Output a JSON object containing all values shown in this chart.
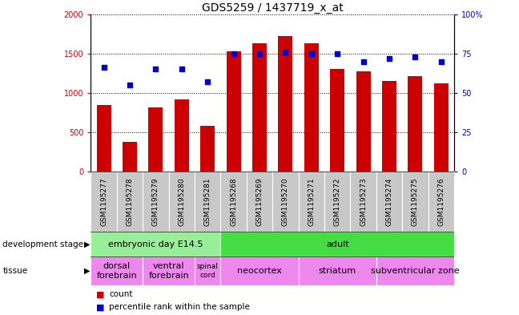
{
  "title": "GDS5259 / 1437719_x_at",
  "samples": [
    "GSM1195277",
    "GSM1195278",
    "GSM1195279",
    "GSM1195280",
    "GSM1195281",
    "GSM1195268",
    "GSM1195269",
    "GSM1195270",
    "GSM1195271",
    "GSM1195272",
    "GSM1195273",
    "GSM1195274",
    "GSM1195275",
    "GSM1195276"
  ],
  "counts": [
    850,
    380,
    820,
    920,
    580,
    1530,
    1630,
    1720,
    1630,
    1300,
    1270,
    1150,
    1210,
    1120
  ],
  "percentiles": [
    66,
    55,
    65,
    65,
    57,
    75,
    75,
    76,
    75,
    75,
    70,
    72,
    73,
    70
  ],
  "ylim_left": [
    0,
    2000
  ],
  "ylim_right": [
    0,
    100
  ],
  "yticks_left": [
    0,
    500,
    1000,
    1500,
    2000
  ],
  "yticks_right": [
    0,
    25,
    50,
    75,
    100
  ],
  "bar_color": "#cc0000",
  "dot_color": "#0000cc",
  "development_stages": [
    {
      "label": "embryonic day E14.5",
      "start": 0,
      "end": 5,
      "color": "#99ee99"
    },
    {
      "label": "adult",
      "start": 5,
      "end": 14,
      "color": "#44dd44"
    }
  ],
  "tissues": [
    {
      "label": "dorsal\nforebrain",
      "start": 0,
      "end": 2,
      "color": "#ee88ee"
    },
    {
      "label": "ventral\nforebrain",
      "start": 2,
      "end": 4,
      "color": "#ee88ee"
    },
    {
      "label": "spinal\ncord",
      "start": 4,
      "end": 5,
      "color": "#ee88ee"
    },
    {
      "label": "neocortex",
      "start": 5,
      "end": 8,
      "color": "#ee88ee"
    },
    {
      "label": "striatum",
      "start": 8,
      "end": 11,
      "color": "#ee88ee"
    },
    {
      "label": "subventricular zone",
      "start": 11,
      "end": 14,
      "color": "#ee88ee"
    }
  ],
  "sample_bg_color": "#c8c8c8",
  "title_fontsize": 10,
  "tick_fontsize": 7,
  "sample_fontsize": 6.5,
  "label_fontsize": 7.5,
  "row_label_fontsize": 7.5
}
